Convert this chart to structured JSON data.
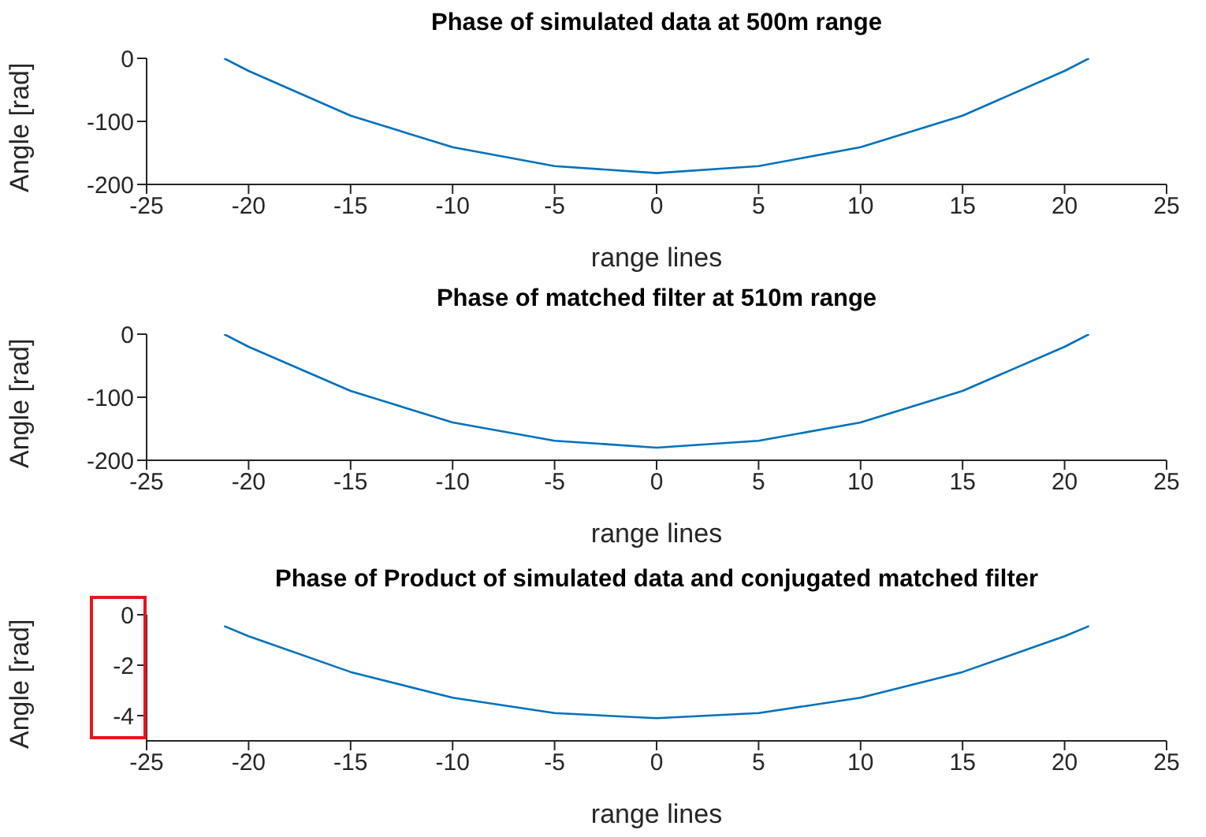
{
  "chart_data": [
    {
      "type": "line",
      "title": "Phase of simulated data at 500m range",
      "xlabel": "range lines",
      "ylabel": "Angle [rad]",
      "x": [
        -21.2,
        -20,
        -15,
        -10,
        -5,
        0,
        5,
        10,
        15,
        20,
        21.2
      ],
      "series": [
        {
          "color": "#0072bd",
          "values": [
            0,
            -20,
            -91,
            -141,
            -171,
            -182,
            -171,
            -141,
            -91,
            -20,
            0
          ]
        }
      ],
      "xlim": [
        -25,
        25
      ],
      "ylim": [
        -200,
        0
      ],
      "xticks": [
        -25,
        -20,
        -15,
        -10,
        -5,
        0,
        5,
        10,
        15,
        20,
        25
      ],
      "yticks": [
        -200,
        -100,
        0
      ]
    },
    {
      "type": "line",
      "title": "Phase of matched filter at 510m range",
      "xlabel": "range lines",
      "ylabel": "Angle [rad]",
      "x": [
        -21.2,
        -20,
        -15,
        -10,
        -5,
        0,
        5,
        10,
        15,
        20,
        21.2
      ],
      "series": [
        {
          "color": "#0072bd",
          "values": [
            0,
            -20,
            -90,
            -140,
            -169,
            -180,
            -169,
            -140,
            -90,
            -20,
            0
          ]
        }
      ],
      "xlim": [
        -25,
        25
      ],
      "ylim": [
        -200,
        0
      ],
      "xticks": [
        -25,
        -20,
        -15,
        -10,
        -5,
        0,
        5,
        10,
        15,
        20,
        25
      ],
      "yticks": [
        -200,
        -100,
        0
      ]
    },
    {
      "type": "line",
      "title": "Phase of Product of simulated data and conjugated matched filter",
      "xlabel": "range lines",
      "ylabel": "Angle [rad]",
      "x": [
        -21.2,
        -20,
        -15,
        -10,
        -5,
        0,
        5,
        10,
        15,
        20,
        21.2
      ],
      "series": [
        {
          "color": "#0072bd",
          "values": [
            -0.45,
            -0.85,
            -2.27,
            -3.29,
            -3.9,
            -4.1,
            -3.9,
            -3.29,
            -2.27,
            -0.85,
            -0.45
          ]
        }
      ],
      "xlim": [
        -25,
        25
      ],
      "ylim": [
        -5,
        0
      ],
      "xticks": [
        -25,
        -20,
        -15,
        -10,
        -5,
        0,
        5,
        10,
        15,
        20,
        25
      ],
      "yticks": [
        -4,
        -2,
        0
      ]
    }
  ]
}
